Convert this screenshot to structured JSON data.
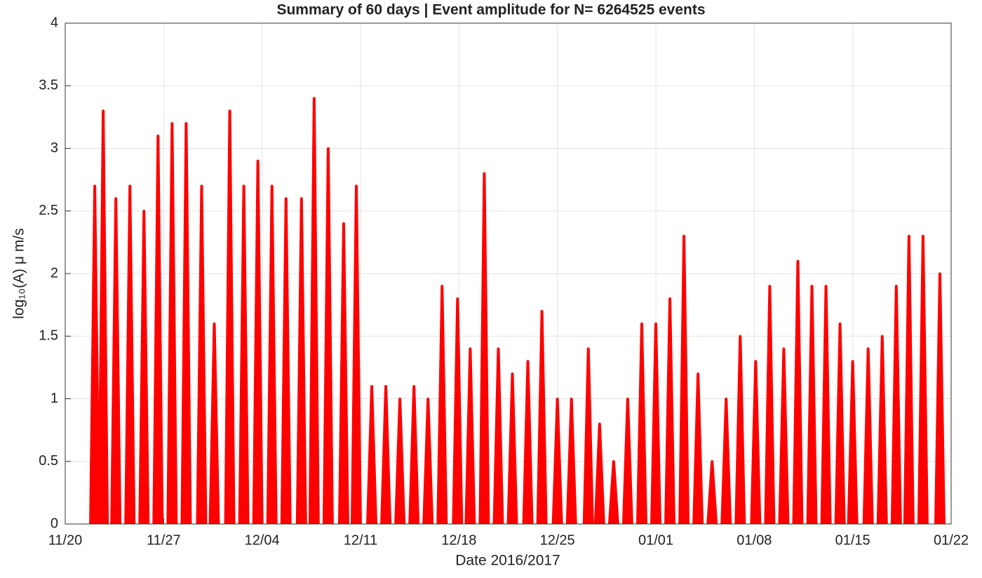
{
  "chart_data": {
    "type": "scatter",
    "title": "Summary of 60 days | Event amplitude for N= 6264525 events",
    "xlabel": "Date 2016/2017",
    "ylabel": "log₁₀(A) μ m/s",
    "x": [
      2.1,
      2.7,
      3.6,
      4.6,
      5.6,
      6.6,
      7.6,
      8.6,
      9.7,
      10.6,
      11.7,
      12.7,
      13.7,
      14.7,
      15.7,
      16.8,
      17.7,
      18.7,
      19.8,
      20.7,
      21.8,
      22.8,
      23.8,
      24.8,
      25.8,
      26.8,
      27.9,
      28.8,
      29.8,
      30.8,
      31.8,
      32.9,
      33.9,
      35.0,
      36.0,
      37.2,
      38.0,
      39.0,
      40.0,
      41.0,
      42.0,
      43.0,
      44.0,
      45.0,
      46.0,
      47.0,
      48.0,
      49.1,
      50.1,
      51.1,
      52.1,
      53.1,
      54.1,
      55.1,
      56.0,
      57.1,
      58.1,
      59.1,
      60.0,
      61.0,
      62.2
    ],
    "values": [
      2.7,
      3.3,
      2.6,
      2.7,
      2.5,
      3.1,
      3.2,
      3.2,
      2.7,
      1.6,
      3.3,
      2.7,
      2.9,
      2.7,
      2.6,
      2.6,
      3.4,
      3.0,
      2.4,
      2.7,
      1.1,
      1.1,
      1.0,
      1.1,
      1.0,
      1.9,
      1.8,
      1.4,
      2.8,
      1.4,
      1.2,
      1.3,
      1.7,
      1.0,
      1.0,
      1.4,
      0.8,
      0.5,
      1.0,
      1.6,
      1.6,
      1.8,
      2.3,
      1.2,
      0.5,
      1.0,
      1.5,
      1.3,
      1.9,
      1.4,
      2.1,
      1.9,
      1.9,
      1.6,
      1.3,
      1.4,
      1.5,
      1.9,
      2.3,
      2.3,
      2.0
    ],
    "color": "#ff0000",
    "xlim": [
      0,
      63
    ],
    "xticks": [
      {
        "value": 0,
        "label": "11/20"
      },
      {
        "value": 7,
        "label": "11/27"
      },
      {
        "value": 14,
        "label": "12/04"
      },
      {
        "value": 21,
        "label": "12/11"
      },
      {
        "value": 28,
        "label": "12/18"
      },
      {
        "value": 35,
        "label": "12/25"
      },
      {
        "value": 42,
        "label": "01/01"
      },
      {
        "value": 49,
        "label": "01/08"
      },
      {
        "value": 56,
        "label": "01/15"
      },
      {
        "value": 63,
        "label": "01/22"
      }
    ],
    "ylim": [
      0,
      4
    ],
    "yticks": [
      0,
      0.5,
      1,
      1.5,
      2,
      2.5,
      3,
      3.5,
      4
    ],
    "grid": true
  }
}
